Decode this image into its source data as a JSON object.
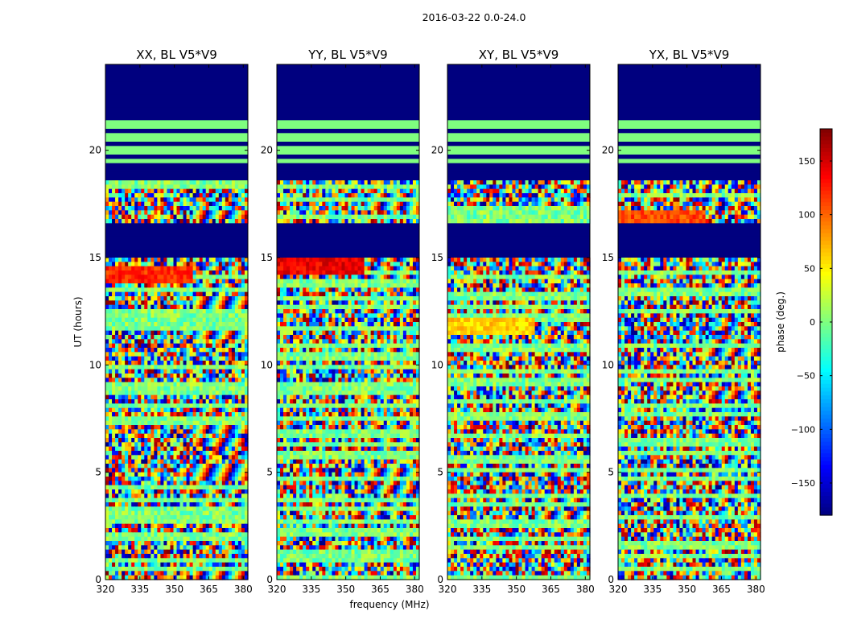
{
  "figure": {
    "suptitle": "2016-03-22 0.0-24.0"
  },
  "chart_data": {
    "type": "heatmap",
    "xlabel": "frequency (MHz)",
    "ylabel": "UT (hours)",
    "xlim": [
      320,
      382
    ],
    "ylim": [
      0,
      24
    ],
    "xticks": [
      320,
      335,
      350,
      365,
      380
    ],
    "yticks": [
      0,
      5,
      10,
      15,
      20
    ],
    "colorbar": {
      "label": "phase (deg.)",
      "range": [
        -180,
        180
      ],
      "ticks": [
        150,
        100,
        50,
        0,
        -50,
        -100,
        -150
      ],
      "tick_labels": [
        "150",
        "100",
        "50",
        "0",
        "−50",
        "−100",
        "−150"
      ],
      "colormap": "jet",
      "colors": [
        "#00007f",
        "#0000ff",
        "#007fff",
        "#00ffff",
        "#7fff7f",
        "#ffff00",
        "#ff7f00",
        "#ff0000",
        "#7f0000"
      ]
    },
    "flagged_value_deg": -180,
    "flagged_hour_ranges": [
      [
        21.6,
        24.0
      ],
      [
        18.6,
        19.4
      ],
      [
        15.1,
        16.6
      ]
    ],
    "constant_value_deg": 0,
    "constant_hour_ranges": [
      [
        19.4,
        21.6
      ]
    ],
    "panels": [
      {
        "title": "XX, BL V5*V9",
        "hot_band_hour": 14.2,
        "hot_band_value_deg": 120
      },
      {
        "title": "YY, BL V5*V9",
        "hot_band_hour": 14.6,
        "hot_band_value_deg": 140
      },
      {
        "title": "XY, BL V5*V9",
        "hot_band_hour": 11.8,
        "hot_band_value_deg": 60
      },
      {
        "title": "YX, BL V5*V9",
        "hot_band_hour": 16.9,
        "hot_band_value_deg": 110
      }
    ]
  }
}
